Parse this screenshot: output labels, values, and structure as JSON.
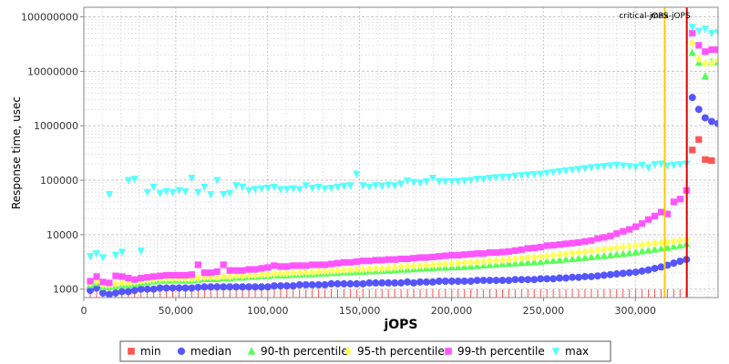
{
  "chart_data": {
    "type": "scatter",
    "title": "",
    "xlabel": "jOPS",
    "ylabel": "Response time, usec",
    "xlim": [
      0,
      345000
    ],
    "ylim": [
      700,
      150000000
    ],
    "yscale": "log",
    "grid": true,
    "legend_position": "bottom",
    "x_ticks": [
      0,
      50000,
      100000,
      150000,
      200000,
      250000,
      300000
    ],
    "x_tick_labels": [
      "0",
      "50,000",
      "100,000",
      "150,000",
      "200,000",
      "250,000",
      "300,000"
    ],
    "y_ticks": [
      1000,
      10000,
      100000,
      1000000,
      10000000,
      100000000
    ],
    "y_tick_labels": [
      "1000",
      "10000",
      "100000",
      "1000000",
      "10000000",
      "100000000"
    ],
    "annotations": [
      {
        "label": "critical-jOPS",
        "x": 316000,
        "color": "#ffc800"
      },
      {
        "label": "max-jOPS",
        "x": 328000,
        "color": "#dd0000"
      }
    ],
    "x": [
      3500,
      6950,
      10400,
      13850,
      17300,
      20750,
      24200,
      27650,
      31100,
      34550,
      38000,
      41450,
      44900,
      48350,
      51800,
      55250,
      58700,
      62150,
      65600,
      69050,
      72500,
      75950,
      79400,
      82850,
      86300,
      89750,
      93200,
      96650,
      100100,
      103550,
      107000,
      110450,
      113900,
      117350,
      120800,
      124250,
      127700,
      131150,
      134600,
      138050,
      141500,
      144950,
      148400,
      151850,
      155300,
      158750,
      162200,
      165650,
      169100,
      172550,
      176000,
      179450,
      182900,
      186350,
      189800,
      193250,
      196700,
      200150,
      203600,
      207050,
      210500,
      213950,
      217400,
      220850,
      224300,
      227750,
      231200,
      234650,
      238100,
      241550,
      245000,
      248450,
      251900,
      255350,
      258800,
      262250,
      265700,
      269150,
      272600,
      276050,
      279500,
      282950,
      286400,
      289850,
      293300,
      296750,
      300200,
      303650,
      307100,
      310550,
      314000,
      317450,
      320900,
      324350,
      327800
    ],
    "series": [
      {
        "name": "min",
        "color": "#ff5555",
        "marker": "square",
        "values": [
          1000,
          1000,
          1000,
          1000,
          1000,
          1000,
          1000,
          1000,
          1000,
          1000,
          1000,
          1000,
          1000,
          1000,
          1000,
          1000,
          1000,
          1000,
          1000,
          1000,
          1000,
          1000,
          1000,
          1000,
          1000,
          1000,
          1000,
          1000,
          1000,
          1000,
          1000,
          1000,
          1000,
          1000,
          1000,
          1000,
          1000,
          1000,
          1000,
          1000,
          1000,
          1000,
          1000,
          1000,
          1000,
          1000,
          1000,
          1000,
          1000,
          1000,
          1000,
          1000,
          1000,
          1000,
          1000,
          1000,
          1000,
          1000,
          1000,
          1000,
          1000,
          1000,
          1000,
          1000,
          1000,
          1000,
          1000,
          1000,
          1000,
          1000,
          1000,
          1000,
          1000,
          1000,
          1000,
          1000,
          1000,
          1000,
          1000,
          1000,
          1000,
          1000,
          1000,
          1000,
          1000,
          1000,
          1000,
          1000,
          1000,
          1000,
          1000,
          1000,
          1000,
          1000,
          1000
        ],
        "extra_x": [
          331000,
          334500,
          338000,
          341500
        ],
        "extra_values": [
          360000,
          560000,
          240000,
          230000
        ]
      },
      {
        "name": "median",
        "color": "#5555ff",
        "marker": "circle",
        "values": [
          950,
          1050,
          850,
          800,
          850,
          900,
          900,
          950,
          1000,
          1000,
          1000,
          1050,
          1050,
          1050,
          1050,
          1050,
          1050,
          1080,
          1100,
          1100,
          1100,
          1100,
          1100,
          1100,
          1100,
          1100,
          1100,
          1100,
          1100,
          1150,
          1150,
          1150,
          1150,
          1200,
          1200,
          1200,
          1200,
          1200,
          1250,
          1250,
          1250,
          1250,
          1250,
          1250,
          1300,
          1300,
          1300,
          1300,
          1300,
          1300,
          1350,
          1300,
          1350,
          1350,
          1350,
          1400,
          1400,
          1400,
          1400,
          1400,
          1400,
          1450,
          1450,
          1450,
          1450,
          1450,
          1450,
          1500,
          1500,
          1500,
          1500,
          1550,
          1550,
          1550,
          1600,
          1600,
          1650,
          1650,
          1700,
          1700,
          1750,
          1800,
          1850,
          1900,
          1950,
          2000,
          2050,
          2150,
          2250,
          2400,
          2550,
          2750,
          3000,
          3250,
          3500
        ],
        "extra_x": [
          331000,
          334500,
          338000,
          341500,
          345000
        ],
        "extra_values": [
          3300000,
          2000000,
          1400000,
          1200000,
          1100000
        ]
      },
      {
        "name": "90-th percentile",
        "color": "#55ff55",
        "marker": "triangle-up",
        "values": [
          1200,
          1300,
          1100,
          1100,
          1150,
          1200,
          1200,
          1250,
          1300,
          1350,
          1400,
          1450,
          1450,
          1450,
          1450,
          1450,
          1450,
          1500,
          1550,
          1550,
          1550,
          1600,
          1600,
          1650,
          1650,
          1700,
          1700,
          1750,
          1750,
          1800,
          1800,
          1800,
          1850,
          1850,
          1900,
          1900,
          1950,
          1950,
          2000,
          2000,
          2050,
          2050,
          2100,
          2100,
          2150,
          2150,
          2200,
          2200,
          2250,
          2300,
          2300,
          2350,
          2400,
          2450,
          2450,
          2500,
          2500,
          2550,
          2550,
          2600,
          2650,
          2700,
          2750,
          2800,
          2850,
          2900,
          2950,
          3000,
          3050,
          3100,
          3150,
          3200,
          3300,
          3350,
          3450,
          3550,
          3600,
          3700,
          3800,
          3900,
          4000,
          4100,
          4200,
          4350,
          4450,
          4600,
          4800,
          5000,
          5200,
          5400,
          5600,
          5800,
          6100,
          6400,
          6800
        ],
        "extra_x": [
          331000,
          334500,
          338000,
          341500,
          345000
        ],
        "extra_values": [
          22000000,
          14500000,
          8200000,
          15000000,
          15000000
        ]
      },
      {
        "name": "95-th percentile",
        "color": "#ffff55",
        "marker": "diamond",
        "values": [
          1300,
          1400,
          1200,
          1200,
          1250,
          1300,
          1300,
          1350,
          1400,
          1450,
          1500,
          1550,
          1550,
          1550,
          1550,
          1550,
          1550,
          1600,
          1650,
          1650,
          1650,
          1700,
          1700,
          1750,
          1750,
          1800,
          1800,
          1850,
          1850,
          1900,
          1950,
          1950,
          2000,
          2000,
          2050,
          2050,
          2100,
          2100,
          2150,
          2200,
          2200,
          2250,
          2300,
          2300,
          2350,
          2400,
          2400,
          2450,
          2500,
          2550,
          2600,
          2650,
          2700,
          2750,
          2800,
          2850,
          2900,
          2950,
          3000,
          3050,
          3100,
          3150,
          3200,
          3300,
          3350,
          3400,
          3500,
          3600,
          3700,
          3800,
          3850,
          3950,
          4050,
          4200,
          4300,
          4450,
          4600,
          4700,
          4850,
          5000,
          5200,
          5350,
          5550,
          5700,
          5900,
          6100,
          6300,
          6500,
          6700,
          6900,
          7100,
          7300,
          7500,
          7800,
          8200
        ],
        "extra_x": [
          331000,
          334500,
          338000,
          341500,
          345000
        ],
        "extra_values": [
          33000000,
          17000000,
          14000000,
          14000000,
          16000000
        ]
      },
      {
        "name": "99-th percentile",
        "color": "#ff55ff",
        "marker": "square",
        "values": [
          1400,
          1700,
          1350,
          1300,
          1750,
          1700,
          1600,
          1500,
          1600,
          1650,
          1700,
          1750,
          1800,
          1800,
          1800,
          1800,
          1850,
          2800,
          2000,
          2000,
          2100,
          2800,
          2200,
          2200,
          2200,
          2300,
          2300,
          2400,
          2500,
          2700,
          2600,
          2600,
          2700,
          2700,
          2700,
          2800,
          2800,
          2800,
          2900,
          3000,
          3100,
          3100,
          3200,
          3300,
          3300,
          3400,
          3400,
          3500,
          3500,
          3600,
          3600,
          3700,
          3800,
          3800,
          3900,
          4000,
          4100,
          4200,
          4200,
          4300,
          4400,
          4500,
          4500,
          4700,
          4700,
          4800,
          4900,
          5100,
          5300,
          5600,
          5700,
          5900,
          6300,
          6400,
          6600,
          6800,
          7000,
          7200,
          7500,
          7800,
          8500,
          8900,
          9500,
          10500,
          11500,
          12500,
          14000,
          16000,
          19000,
          22000,
          26000,
          24000,
          40000,
          45000,
          65000
        ],
        "extra_x": [
          331000,
          334500,
          338000,
          341500,
          345000
        ],
        "extra_values": [
          50000000,
          30000000,
          23000000,
          25000000,
          25000000
        ]
      },
      {
        "name": "max",
        "color": "#55ffff",
        "marker": "triangle-down",
        "values": [
          4000,
          4500,
          3800,
          55000,
          4200,
          4800,
          100000,
          105000,
          5000,
          60000,
          75000,
          58000,
          63000,
          60000,
          65000,
          62000,
          110000,
          60000,
          75000,
          55000,
          100000,
          55000,
          58000,
          80000,
          75000,
          65000,
          68000,
          70000,
          72000,
          75000,
          68000,
          68000,
          70000,
          68000,
          80000,
          72000,
          75000,
          70000,
          72000,
          75000,
          78000,
          80000,
          130000,
          80000,
          75000,
          80000,
          78000,
          82000,
          80000,
          85000,
          98000,
          92000,
          90000,
          95000,
          110000,
          95000,
          95000,
          95000,
          96000,
          98000,
          100000,
          105000,
          105000,
          110000,
          112000,
          115000,
          115000,
          120000,
          122000,
          125000,
          128000,
          130000,
          135000,
          140000,
          145000,
          150000,
          155000,
          160000,
          165000,
          170000,
          175000,
          180000,
          185000,
          190000,
          185000,
          180000,
          175000,
          190000,
          170000,
          195000,
          200000,
          185000,
          190000,
          195000,
          200000
        ],
        "extra_x": [
          331000,
          334500,
          338000,
          341500,
          345000
        ],
        "extra_values": [
          65000000,
          55000000,
          60000000,
          50000000,
          52000000
        ]
      }
    ]
  }
}
